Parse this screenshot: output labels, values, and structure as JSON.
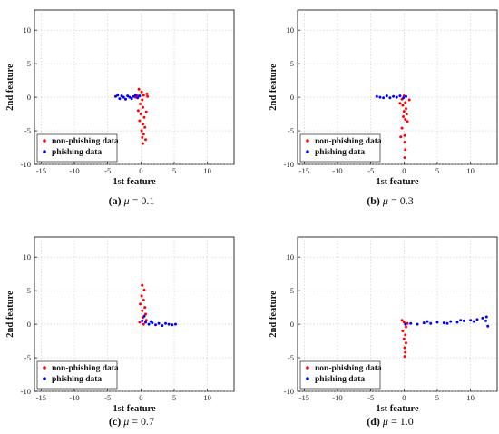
{
  "figure": {
    "panels": [
      {
        "caption": {
          "label": "(a)",
          "var": "μ",
          "eq": " = 0.1"
        }
      },
      {
        "caption": {
          "label": "(b)",
          "var": "μ",
          "eq": " = 0.3"
        }
      },
      {
        "caption": {
          "label": "(c)",
          "var": "μ",
          "eq": " = 0.7"
        }
      },
      {
        "caption": {
          "label": "(d)",
          "var": "μ",
          "eq": " = 1.0"
        }
      }
    ]
  },
  "chart_data": [
    {
      "type": "scatter",
      "xlabel": "1st feature",
      "ylabel": "2nd feature",
      "xlim": [
        -16,
        14
      ],
      "ylim": [
        -10,
        13
      ],
      "xticks": [
        -15,
        -10,
        -5,
        0,
        5,
        10
      ],
      "yticks": [
        -10,
        -5,
        0,
        5,
        10
      ],
      "grid": true,
      "legend_position": "bottom-left",
      "series": [
        {
          "name": "non-phishing data",
          "color": "#ff0000",
          "points": [
            [
              -0.3,
              1.2
            ],
            [
              0.1,
              0.8
            ],
            [
              0.4,
              0.3
            ],
            [
              -0.5,
              0.2
            ],
            [
              0.2,
              -0.4
            ],
            [
              -0.1,
              -1.0
            ],
            [
              0.3,
              -1.5
            ],
            [
              -0.4,
              -2.0
            ],
            [
              0.0,
              -2.5
            ],
            [
              0.5,
              -3.0
            ],
            [
              -0.2,
              -3.5
            ],
            [
              0.3,
              -4.0
            ],
            [
              0.6,
              -4.5
            ],
            [
              0.1,
              -5.0
            ],
            [
              0.4,
              -5.5
            ],
            [
              0.2,
              -6.0
            ],
            [
              0.7,
              -6.3
            ],
            [
              0.3,
              -6.9
            ],
            [
              0.9,
              0.5
            ],
            [
              1.0,
              0.1
            ],
            [
              -0.8,
              0.0
            ],
            [
              0.8,
              -2.2
            ]
          ]
        },
        {
          "name": "phishing data",
          "color": "#0000ff",
          "points": [
            [
              -3.8,
              0.1
            ],
            [
              -3.5,
              0.3
            ],
            [
              -3.2,
              -0.2
            ],
            [
              -2.9,
              0.2
            ],
            [
              -2.6,
              0.0
            ],
            [
              -2.3,
              -0.3
            ],
            [
              -2.0,
              0.2
            ],
            [
              -1.7,
              0.0
            ],
            [
              -1.4,
              -0.2
            ],
            [
              -1.1,
              0.1
            ],
            [
              -0.8,
              0.3
            ],
            [
              -0.5,
              -0.1
            ],
            [
              -0.2,
              0.2
            ]
          ]
        }
      ]
    },
    {
      "type": "scatter",
      "xlabel": "1st feature",
      "ylabel": "2nd feature",
      "xlim": [
        -16,
        14
      ],
      "ylim": [
        -10,
        13
      ],
      "xticks": [
        -15,
        -10,
        -5,
        0,
        5,
        10
      ],
      "yticks": [
        -10,
        -5,
        0,
        5,
        10
      ],
      "grid": true,
      "legend_position": "bottom-left",
      "series": [
        {
          "name": "non-phishing data",
          "color": "#ff0000",
          "points": [
            [
              0.0,
              0.2
            ],
            [
              -0.3,
              -0.3
            ],
            [
              0.2,
              -0.8
            ],
            [
              -0.2,
              -1.2
            ],
            [
              0.3,
              -1.7
            ],
            [
              0.0,
              -2.1
            ],
            [
              0.4,
              -2.5
            ],
            [
              -0.1,
              -2.9
            ],
            [
              0.2,
              -3.3
            ],
            [
              0.5,
              -3.6
            ],
            [
              -0.3,
              -4.6
            ],
            [
              0.1,
              -5.7
            ],
            [
              -0.5,
              -5.9
            ],
            [
              0.1,
              -6.7
            ],
            [
              0.2,
              -7.8
            ],
            [
              0.1,
              -9.0
            ],
            [
              0.8,
              -0.4
            ],
            [
              -0.6,
              -0.9
            ]
          ]
        },
        {
          "name": "phishing data",
          "color": "#0000ff",
          "points": [
            [
              -4.1,
              0.1
            ],
            [
              -3.6,
              0.0
            ],
            [
              -3.1,
              -0.1
            ],
            [
              -2.6,
              0.2
            ],
            [
              -2.1,
              -0.1
            ],
            [
              -1.6,
              0.1
            ],
            [
              -1.1,
              0.0
            ],
            [
              -0.6,
              0.2
            ],
            [
              -0.1,
              -0.1
            ],
            [
              0.3,
              0.1
            ]
          ]
        }
      ]
    },
    {
      "type": "scatter",
      "xlabel": "1st feature",
      "ylabel": "2nd feature",
      "xlim": [
        -16,
        14
      ],
      "ylim": [
        -10,
        13
      ],
      "xticks": [
        -15,
        -10,
        -5,
        0,
        5,
        10
      ],
      "yticks": [
        -10,
        -5,
        0,
        5,
        10
      ],
      "grid": true,
      "legend_position": "bottom-left",
      "series": [
        {
          "name": "non-phishing data",
          "color": "#ff0000",
          "points": [
            [
              0.2,
              5.8
            ],
            [
              0.5,
              5.1
            ],
            [
              0.1,
              4.2
            ],
            [
              0.4,
              3.6
            ],
            [
              -0.1,
              3.0
            ],
            [
              0.6,
              2.5
            ],
            [
              0.2,
              2.0
            ],
            [
              0.7,
              1.5
            ],
            [
              0.3,
              1.0
            ],
            [
              0.8,
              0.6
            ],
            [
              -0.2,
              0.3
            ],
            [
              0.4,
              0.0
            ]
          ]
        },
        {
          "name": "phishing data",
          "color": "#0000ff",
          "points": [
            [
              0.2,
              0.5
            ],
            [
              0.7,
              0.3
            ],
            [
              1.2,
              0.0
            ],
            [
              1.7,
              0.2
            ],
            [
              2.2,
              -0.1
            ],
            [
              2.7,
              0.1
            ],
            [
              3.2,
              -0.2
            ],
            [
              3.7,
              0.1
            ],
            [
              4.2,
              0.0
            ],
            [
              4.7,
              -0.1
            ],
            [
              5.2,
              0.0
            ],
            [
              0.5,
              1.2
            ],
            [
              1.5,
              0.4
            ]
          ]
        }
      ]
    },
    {
      "type": "scatter",
      "xlabel": "1st feature",
      "ylabel": "2nd feature",
      "xlim": [
        -16,
        14
      ],
      "ylim": [
        -10,
        13
      ],
      "xticks": [
        -15,
        -10,
        -5,
        0,
        5,
        10
      ],
      "yticks": [
        -10,
        -5,
        0,
        5,
        10
      ],
      "grid": true,
      "legend_position": "bottom-left",
      "series": [
        {
          "name": "non-phishing data",
          "color": "#ff0000",
          "points": [
            [
              0.0,
              0.3
            ],
            [
              0.3,
              -0.4
            ],
            [
              -0.2,
              -1.0
            ],
            [
              0.2,
              -1.6
            ],
            [
              0.0,
              -2.2
            ],
            [
              0.3,
              -2.8
            ],
            [
              0.1,
              -3.5
            ],
            [
              0.2,
              -4.2
            ],
            [
              0.1,
              -4.8
            ],
            [
              -0.3,
              0.6
            ],
            [
              0.5,
              0.1
            ]
          ]
        },
        {
          "name": "phishing data",
          "color": "#0000ff",
          "points": [
            [
              0.2,
              0.0
            ],
            [
              1.0,
              0.1
            ],
            [
              2.0,
              0.0
            ],
            [
              3.0,
              0.2
            ],
            [
              4.0,
              0.1
            ],
            [
              5.0,
              0.3
            ],
            [
              6.0,
              0.2
            ],
            [
              7.0,
              0.4
            ],
            [
              8.0,
              0.3
            ],
            [
              9.0,
              0.5
            ],
            [
              10.0,
              0.6
            ],
            [
              11.0,
              0.7
            ],
            [
              11.8,
              0.9
            ],
            [
              12.3,
              0.5
            ],
            [
              12.6,
              -0.3
            ],
            [
              12.4,
              1.1
            ],
            [
              10.5,
              0.4
            ],
            [
              8.5,
              0.6
            ],
            [
              6.5,
              0.1
            ],
            [
              3.5,
              0.4
            ]
          ]
        }
      ]
    }
  ]
}
